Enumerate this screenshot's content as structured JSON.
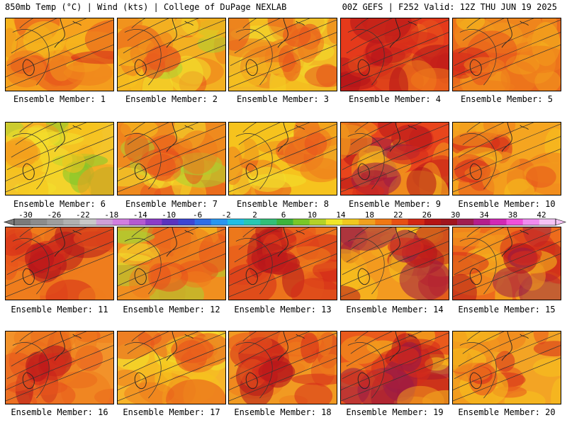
{
  "header": {
    "left": "850mb Temp (°C) | Wind (kts) | College of DuPage NEXLAB",
    "right": "00Z GEFS | F252 Valid: 12Z THU JUN 19 2025"
  },
  "members": [
    {
      "label": "Ensemble Member: 1",
      "base": "#f6a11d",
      "theme": 0
    },
    {
      "label": "Ensemble Member: 2",
      "base": "#f3b021",
      "theme": 1
    },
    {
      "label": "Ensemble Member: 3",
      "base": "#f2b925",
      "theme": 2
    },
    {
      "label": "Ensemble Member: 4",
      "base": "#e53a1b",
      "theme": 3
    },
    {
      "label": "Ensemble Member: 5",
      "base": "#ea6a1c",
      "theme": 0
    },
    {
      "label": "Ensemble Member: 6",
      "base": "#f4c42a",
      "theme": 4
    },
    {
      "label": "Ensemble Member: 7",
      "base": "#ef8a1e",
      "theme": 1
    },
    {
      "label": "Ensemble Member: 8",
      "base": "#f6c31e",
      "theme": 2
    },
    {
      "label": "Ensemble Member: 9",
      "base": "#e8451c",
      "theme": 5
    },
    {
      "label": "Ensemble Member: 10",
      "base": "#f5a520",
      "theme": 0
    },
    {
      "label": "Ensemble Member: 11",
      "base": "#ef7d1d",
      "theme": 3
    },
    {
      "label": "Ensemble Member: 12",
      "base": "#f08f1f",
      "theme": 1
    },
    {
      "label": "Ensemble Member: 13",
      "base": "#ec741c",
      "theme": 3
    },
    {
      "label": "Ensemble Member: 14",
      "base": "#f39a20",
      "theme": 5
    },
    {
      "label": "Ensemble Member: 15",
      "base": "#ed6b1c",
      "theme": 5
    },
    {
      "label": "Ensemble Member: 16",
      "base": "#f2922a",
      "theme": 3
    },
    {
      "label": "Ensemble Member: 17",
      "base": "#f7b42a",
      "theme": 2
    },
    {
      "label": "Ensemble Member: 18",
      "base": "#f19a22",
      "theme": 3
    },
    {
      "label": "Ensemble Member: 19",
      "base": "#ea5a1c",
      "theme": 5
    },
    {
      "label": "Ensemble Member: 20",
      "base": "#f3a424",
      "theme": 0
    }
  ],
  "colorbar": {
    "ticks": [
      "-30",
      "-26",
      "-22",
      "-18",
      "-14",
      "-10",
      "-6",
      "-2",
      "2",
      "6",
      "10",
      "14",
      "18",
      "22",
      "26",
      "30",
      "34",
      "38",
      "42"
    ],
    "colors": [
      "#7a7a7a",
      "#8c8c8c",
      "#9e9e9e",
      "#b0b0b0",
      "#c8c8c8",
      "#cfa0d8",
      "#d27ee0",
      "#b45ad2",
      "#8c3cc8",
      "#5a32be",
      "#3c46d2",
      "#2e6ee6",
      "#2896f0",
      "#20bee6",
      "#28c8b4",
      "#32be78",
      "#3cb43c",
      "#78c828",
      "#b4d228",
      "#f0e628",
      "#f0c81e",
      "#f0a01e",
      "#f07814",
      "#e65014",
      "#d22814",
      "#b41414",
      "#a0141e",
      "#a01e50",
      "#b41e8c",
      "#d228b4",
      "#f050dc",
      "#f08cf0",
      "#f5c3f5"
    ]
  },
  "palette": [
    "#7fc629",
    "#aad232",
    "#f2e02b",
    "#f5c21e",
    "#f39b1d",
    "#ef7c1c",
    "#e8531c",
    "#d62c1a",
    "#b5141a",
    "#9a1b45",
    "#b31f8b"
  ]
}
